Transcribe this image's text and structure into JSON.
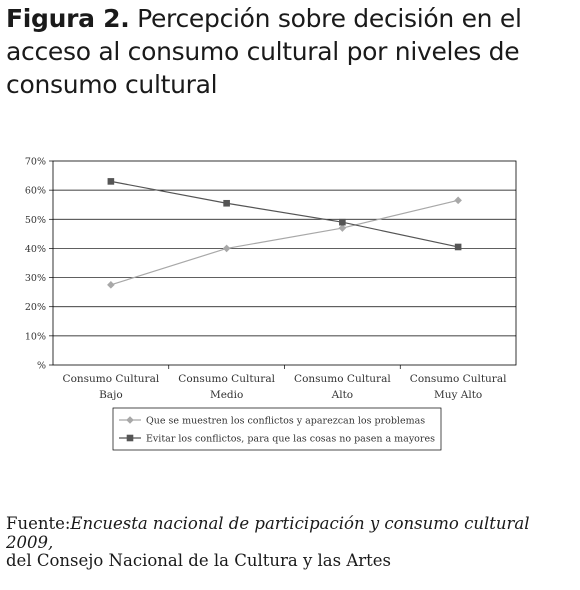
{
  "figure": {
    "label": "Figura 2.",
    "title": "Percepción sobre decisión en el acceso al consumo cultural por niveles de consumo cultural"
  },
  "source": {
    "prefix": "Fuente:",
    "italic": "Encuesta nacional de participación y consumo cultural 2009,",
    "rest": "del Consejo Nacional de la Cultura y las Artes"
  },
  "chart_data": {
    "type": "line",
    "categories": [
      [
        "Consumo Cultural",
        "Bajo"
      ],
      [
        "Consumo Cultural",
        "Medio"
      ],
      [
        "Consumo Cultural",
        "Alto"
      ],
      [
        "Consumo Cultural",
        "Muy Alto"
      ]
    ],
    "ylim": [
      0,
      70
    ],
    "yticks": [
      {
        "value": 0,
        "label": "%"
      },
      {
        "value": 10,
        "label": "10%"
      },
      {
        "value": 20,
        "label": "20%"
      },
      {
        "value": 30,
        "label": "30%"
      },
      {
        "value": 40,
        "label": "40%"
      },
      {
        "value": 50,
        "label": "50%"
      },
      {
        "value": 60,
        "label": "60%"
      },
      {
        "value": 70,
        "label": "70%"
      }
    ],
    "grid": true,
    "legend_position": "bottom",
    "series": [
      {
        "name": "Que se muestren los conflictos y aparezcan los problemas",
        "marker": "diamond",
        "color": "#a8a8a8",
        "values": [
          27.5,
          40,
          47,
          56.5
        ]
      },
      {
        "name": "Evitar los conflictos, para que las cosas no pasen a mayores",
        "marker": "square",
        "color": "#555555",
        "values": [
          63,
          55.5,
          49,
          40.5
        ]
      }
    ]
  }
}
